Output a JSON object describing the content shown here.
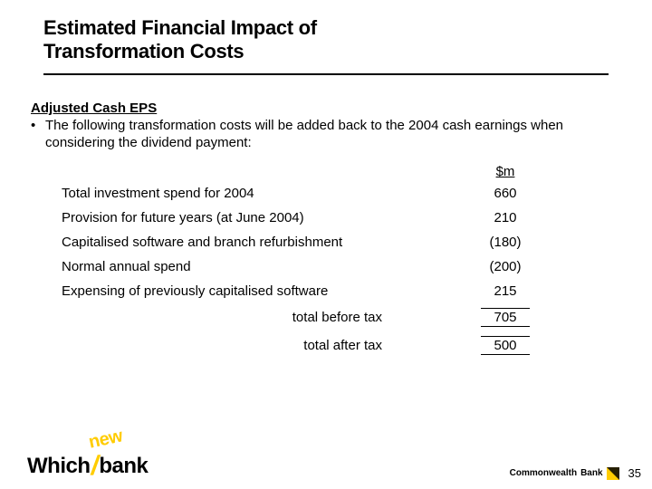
{
  "title_line1": "Estimated Financial Impact of",
  "title_line2": "Transformation Costs",
  "subhead": "Adjusted Cash EPS",
  "bullet": "The following transformation costs will be added back to the 2004 cash earnings when considering the dividend payment:",
  "table": {
    "header": "$m",
    "rows": [
      {
        "label": "Total investment spend for 2004",
        "value": "660"
      },
      {
        "label": "Provision for future years (at June 2004)",
        "value": "210"
      },
      {
        "label": "Capitalised software and branch refurbishment",
        "value": "(180)"
      },
      {
        "label": "Normal annual spend",
        "value": "(200)"
      },
      {
        "label": "Expensing of previously capitalised software",
        "value": "215"
      }
    ],
    "totals": [
      {
        "label": "total before tax",
        "value": "705"
      },
      {
        "label": "total after tax",
        "value": "500"
      }
    ]
  },
  "footer": {
    "which_a": "Which",
    "which_b": "bank",
    "new_badge": "new",
    "cba_a": "Commonwealth",
    "cba_b": "Bank",
    "page": "35"
  },
  "colors": {
    "accent": "#ffcc00",
    "text": "#000000",
    "bg": "#ffffff"
  }
}
